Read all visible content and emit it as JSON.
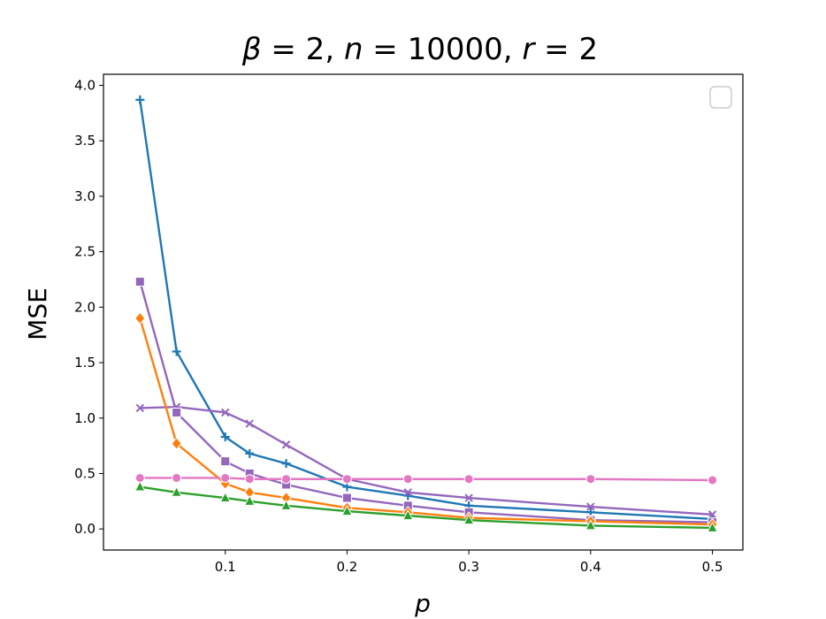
{
  "chart_data": {
    "type": "line",
    "title": {
      "beta_sym": "β",
      "beta_val": " = 2, ",
      "n_sym": "n",
      "n_val": " = 10000, ",
      "r_sym": "r",
      "r_val": " = 2"
    },
    "xlabel": "p",
    "ylabel": "MSE",
    "xlim": [
      0.0,
      0.525
    ],
    "ylim": [
      -0.19,
      4.1
    ],
    "xticks": [
      0.1,
      0.2,
      0.3,
      0.4,
      0.5
    ],
    "xtick_labels": [
      "0.1",
      "0.2",
      "0.3",
      "0.4",
      "0.5"
    ],
    "yticks": [
      0.0,
      0.5,
      1.0,
      1.5,
      2.0,
      2.5,
      3.0,
      3.5,
      4.0
    ],
    "ytick_labels": [
      "0.0",
      "0.5",
      "1.0",
      "1.5",
      "2.0",
      "2.5",
      "3.0",
      "3.5",
      "4.0"
    ],
    "grid": false,
    "legend": "top-right (empty)",
    "x": [
      0.03,
      0.06,
      0.1,
      0.12,
      0.15,
      0.2,
      0.25,
      0.3,
      0.4,
      0.5
    ],
    "series": [
      {
        "color": "#1f77b4",
        "marker": "plus",
        "values": [
          3.87,
          1.6,
          0.83,
          0.68,
          0.59,
          0.38,
          0.3,
          0.21,
          0.15,
          0.09
        ]
      },
      {
        "color": "#9467bd",
        "marker": "x",
        "values": [
          1.09,
          1.1,
          1.05,
          0.95,
          0.76,
          0.45,
          0.33,
          0.28,
          0.2,
          0.13
        ]
      },
      {
        "color": "#9467bd",
        "marker": "square",
        "values": [
          2.23,
          1.05,
          0.61,
          0.5,
          0.4,
          0.28,
          0.21,
          0.15,
          0.08,
          0.06
        ]
      },
      {
        "color": "#ff7f0e",
        "marker": "diamond",
        "values": [
          1.9,
          0.77,
          0.41,
          0.33,
          0.28,
          0.19,
          0.15,
          0.1,
          0.07,
          0.04
        ]
      },
      {
        "color": "#2ca02c",
        "marker": "triangle",
        "values": [
          0.38,
          0.33,
          0.28,
          0.25,
          0.21,
          0.16,
          0.12,
          0.08,
          0.03,
          0.01
        ]
      },
      {
        "color": "#e377c2",
        "marker": "circle",
        "values": [
          0.46,
          0.46,
          0.46,
          0.45,
          0.45,
          0.45,
          0.45,
          0.45,
          0.45,
          0.44
        ]
      }
    ]
  }
}
